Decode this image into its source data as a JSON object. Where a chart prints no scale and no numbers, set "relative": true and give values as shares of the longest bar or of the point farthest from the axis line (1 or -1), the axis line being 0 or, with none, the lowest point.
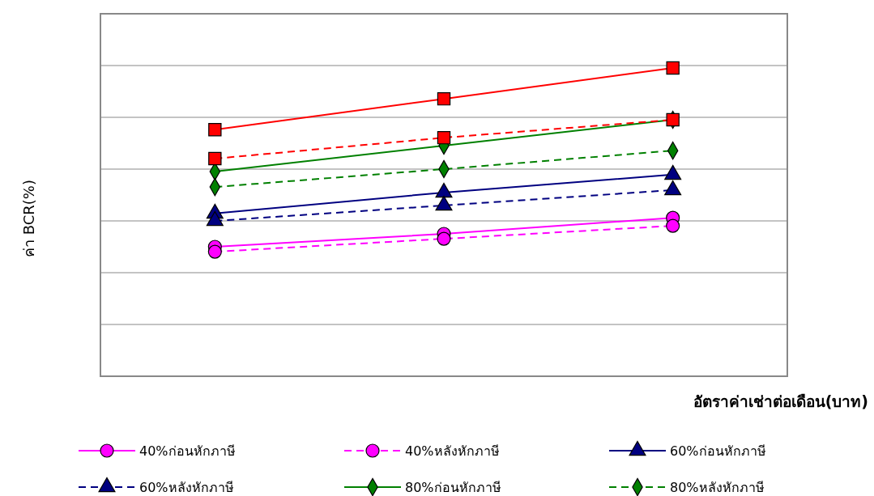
{
  "chart_data": {
    "type": "line",
    "relative": true,
    "ylabel": "ค่า BCR(%)",
    "xlabel": "อัตราค่าเช่าต่อเดือน(บาท)",
    "categories": [
      null,
      null,
      null
    ],
    "grid": "y",
    "legend": "bottom",
    "series": [
      {
        "name": "40%ก่อนหักภาษี",
        "color": "#ff00ff",
        "marker": "circle",
        "line_style": "solid",
        "values": [
          0.42,
          0.462,
          0.514
        ]
      },
      {
        "name": "40%หลังหักภาษี",
        "color": "#ff00ff",
        "marker": "circle",
        "line_style": "dashed",
        "values": [
          0.404,
          0.446,
          0.488
        ]
      },
      {
        "name": "60%ก่อนหักภาษี",
        "color": "#000080",
        "marker": "triangle",
        "line_style": "solid",
        "values": [
          0.528,
          0.596,
          0.654
        ]
      },
      {
        "name": "60%หลังหักภาษี",
        "color": "#000080",
        "marker": "triangle",
        "line_style": "dashed",
        "values": [
          0.504,
          0.554,
          0.604
        ]
      },
      {
        "name": "80%ก่อนหักภาษี",
        "color": "#008000",
        "marker": "diamond",
        "line_style": "solid",
        "values": [
          0.664,
          0.748,
          0.832
        ]
      },
      {
        "name": "80%หลังหักภาษี",
        "color": "#008000",
        "marker": "diamond",
        "line_style": "dashed",
        "values": [
          0.614,
          0.672,
          0.732
        ]
      },
      {
        "color": "#ff0000",
        "marker": "square",
        "line_style": "solid",
        "values": [
          0.8,
          0.9,
          1.0
        ]
      },
      {
        "color": "#ff0000",
        "marker": "square",
        "line_style": "dashed",
        "values": [
          0.706,
          0.774,
          0.832
        ]
      }
    ]
  }
}
